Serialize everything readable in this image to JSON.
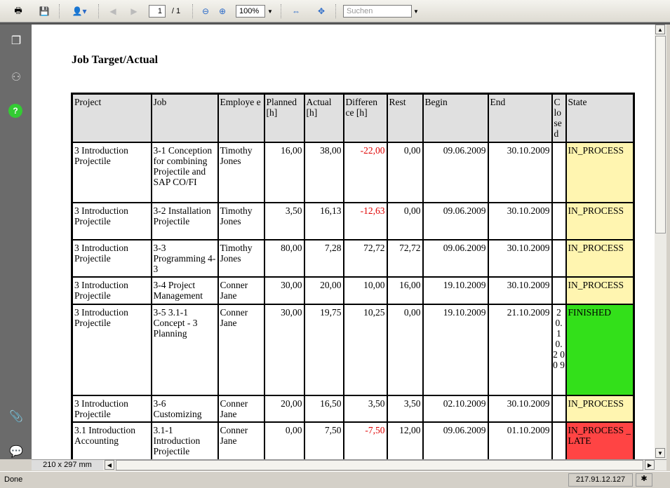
{
  "toolbar": {
    "page_current": "1",
    "page_total": "/ 1",
    "zoom": "100%",
    "search_placeholder": "Suchen"
  },
  "document": {
    "title": "Job Target/Actual",
    "headers": [
      "Project",
      "Job",
      "Employe e",
      "Planned [h]",
      "Actual [h]",
      "Differen ce [h]",
      "Rest",
      "Begin",
      "End",
      "C lo se d",
      "State"
    ],
    "rows": [
      {
        "project": "3 Introduction Projectile",
        "job": "3-1 Conception for combining Projectile and SAP CO/FI",
        "employee": "Timothy Jones",
        "planned": "16,00",
        "actual": "38,00",
        "difference": "-22,00",
        "rest": "0,00",
        "begin": "09.06.2009",
        "end": "30.10.2009",
        "closed": "",
        "state": "IN_PROCESS",
        "state_color": "#fff5b0"
      },
      {
        "project": "3 Introduction Projectile",
        "job": "3-2 Installation Projectile",
        "employee": "Timothy Jones",
        "planned": "3,50",
        "actual": "16,13",
        "difference": "-12,63",
        "rest": "0,00",
        "begin": "09.06.2009",
        "end": "30.10.2009",
        "closed": "",
        "state": "IN_PROCESS",
        "state_color": "#fff5b0"
      },
      {
        "project": "3 Introduction Projectile",
        "job": "3-3 Programming 4-3",
        "employee": "Timothy Jones",
        "planned": "80,00",
        "actual": "7,28",
        "difference": "72,72",
        "rest": "72,72",
        "begin": "09.06.2009",
        "end": "30.10.2009",
        "closed": "",
        "state": "IN_PROCESS",
        "state_color": "#fff5b0"
      },
      {
        "project": "3 Introduction Projectile",
        "job": "3-4 Project Management",
        "employee": "Conner Jane",
        "planned": "30,00",
        "actual": "20,00",
        "difference": "10,00",
        "rest": "16,00",
        "begin": "19.10.2009",
        "end": "30.10.2009",
        "closed": "",
        "state": "IN_PROCESS",
        "state_color": "#fff5b0"
      },
      {
        "project": "3 Introduction Projectile",
        "job": "3-5 3.1-1 Concept - 3 Planning",
        "employee": "Conner Jane",
        "planned": "30,00",
        "actual": "19,75",
        "difference": "10,25",
        "rest": "0,00",
        "begin": "19.10.2009",
        "end": "21.10.2009",
        "closed": "2 0. 1 0. 2 0 0 9",
        "state": "FINISHED",
        "state_color": "#33e01a"
      },
      {
        "project": "3 Introduction Projectile",
        "job": "3-6 Customizing",
        "employee": "Conner Jane",
        "planned": "20,00",
        "actual": "16,50",
        "difference": "3,50",
        "rest": "3,50",
        "begin": "02.10.2009",
        "end": "30.10.2009",
        "closed": "",
        "state": "IN_PROCESS",
        "state_color": "#fff5b0"
      },
      {
        "project": "3.1 Introduction Accounting",
        "job": "3.1-1 Introduction Projectile",
        "employee": "Conner Jane",
        "planned": "0,00",
        "actual": "7,50",
        "difference": "-7,50",
        "rest": "12,00",
        "begin": "09.06.2009",
        "end": "01.10.2009",
        "closed": "",
        "state": "IN_PROCESS _LATE",
        "state_color": "#ff4444"
      }
    ]
  },
  "bottom": {
    "page_size": "210 x 297 mm"
  },
  "status": {
    "text": "Done",
    "ip": "217.91.12.127"
  }
}
